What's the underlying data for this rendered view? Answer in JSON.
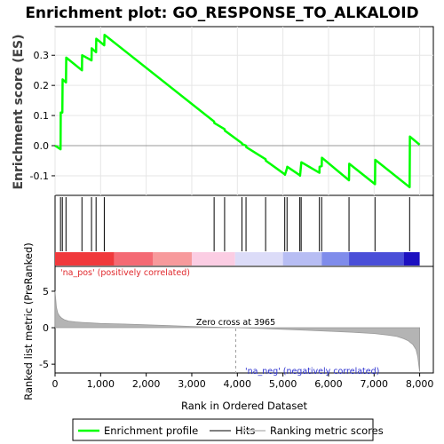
{
  "chart_data": {
    "type": "line",
    "title": "Enrichment plot: GO_RESPONSE_TO_ALKALOID",
    "ylabel": "Enrichment score (ES)",
    "ylim": [
      -0.165,
      0.395
    ],
    "yticks": [
      -0.1,
      0.0,
      0.1,
      0.2,
      0.3
    ],
    "yticklabels": [
      "-0.1",
      "0.0",
      "0.1",
      "0.2",
      "0.3"
    ],
    "xlim": [
      0,
      8300
    ],
    "series": [
      {
        "name": "Enrichment profile",
        "color": "#00ff00",
        "x": [
          0,
          120,
          125,
          160,
          165,
          240,
          245,
          590,
          595,
          800,
          805,
          900,
          905,
          1080,
          1085,
          3490,
          3495,
          3720,
          3725,
          4100,
          4105,
          4190,
          4195,
          4620,
          4625,
          5040,
          5045,
          5090,
          5095,
          5370,
          5375,
          5400,
          5405,
          5800,
          5805,
          5850,
          5855,
          6450,
          6455,
          7020,
          7025,
          7780,
          7785,
          8000
        ],
        "y": [
          0,
          -0.012,
          0.11,
          0.11,
          0.22,
          0.21,
          0.292,
          0.25,
          0.3,
          0.283,
          0.323,
          0.31,
          0.355,
          0.333,
          0.368,
          0.08,
          0.075,
          0.055,
          0.05,
          0.008,
          0.005,
          0.0,
          -0.005,
          -0.045,
          -0.05,
          -0.095,
          -0.097,
          -0.075,
          -0.07,
          -0.098,
          -0.1,
          -0.06,
          -0.055,
          -0.09,
          -0.07,
          -0.068,
          -0.04,
          -0.115,
          -0.06,
          -0.128,
          -0.047,
          -0.138,
          0.03,
          0.003
        ]
      }
    ],
    "hits": [
      120,
      160,
      240,
      590,
      800,
      900,
      1080,
      3490,
      3720,
      4100,
      4190,
      4620,
      5040,
      5090,
      5370,
      5400,
      5800,
      5850,
      6450,
      7020,
      7780
    ],
    "ranked_list": {
      "ylabel": "Ranked list metric (PreRanked)",
      "ylim": [
        -6.2,
        8.4
      ],
      "yticks": [
        -5,
        0,
        5
      ],
      "yticklabels": [
        "-5",
        "0",
        "5"
      ],
      "x": [
        0,
        30,
        60,
        100,
        150,
        200,
        300,
        450,
        600,
        800,
        1000,
        1500,
        2000,
        2500,
        3000,
        3500,
        3965,
        4500,
        5000,
        5500,
        6000,
        6500,
        7000,
        7300,
        7500,
        7650,
        7750,
        7850,
        7920,
        7960,
        7990,
        8000
      ],
      "y": [
        5.0,
        2.8,
        2.0,
        1.6,
        1.3,
        1.1,
        0.9,
        0.8,
        0.72,
        0.65,
        0.58,
        0.5,
        0.4,
        0.3,
        0.18,
        0.08,
        0.0,
        -0.1,
        -0.22,
        -0.35,
        -0.48,
        -0.62,
        -0.8,
        -1.0,
        -1.2,
        -1.5,
        -1.8,
        -2.3,
        -3.0,
        -4.0,
        -5.6,
        -6.0
      ],
      "zero_cross_label": "Zero cross at 3965",
      "zero_cross": 3965,
      "pos_label": "'na_pos' (positively correlated)",
      "neg_label": "'na_neg' (negatively correlated)"
    },
    "xlabel": "Rank in Ordered Dataset",
    "xticks": [
      0,
      1000,
      2000,
      3000,
      4000,
      5000,
      6000,
      7000,
      8000
    ],
    "xticklabels": [
      "0",
      "1,000",
      "2,000",
      "3,000",
      "4,000",
      "5,000",
      "6,000",
      "7,000",
      "8,000"
    ],
    "colorbar": [
      {
        "to": 1300,
        "color": "#f0393c"
      },
      {
        "to": 2150,
        "color": "#f46a74"
      },
      {
        "to": 3000,
        "color": "#f79a9c"
      },
      {
        "to": 3950,
        "color": "#fbcde3"
      },
      {
        "to": 5000,
        "color": "#dcdcf8"
      },
      {
        "to": 5850,
        "color": "#b7bdf3"
      },
      {
        "to": 6450,
        "color": "#7f8ceb"
      },
      {
        "to": 7650,
        "color": "#4a4fd8"
      },
      {
        "to": 8000,
        "color": "#1c10c0"
      }
    ],
    "legend": {
      "placement": "bottom",
      "items": [
        {
          "label": "Enrichment profile",
          "color": "#00ff00"
        },
        {
          "label": "Hits",
          "color": "#808080"
        },
        {
          "label": "Ranking metric scores",
          "color": "#cccccc"
        }
      ]
    }
  }
}
